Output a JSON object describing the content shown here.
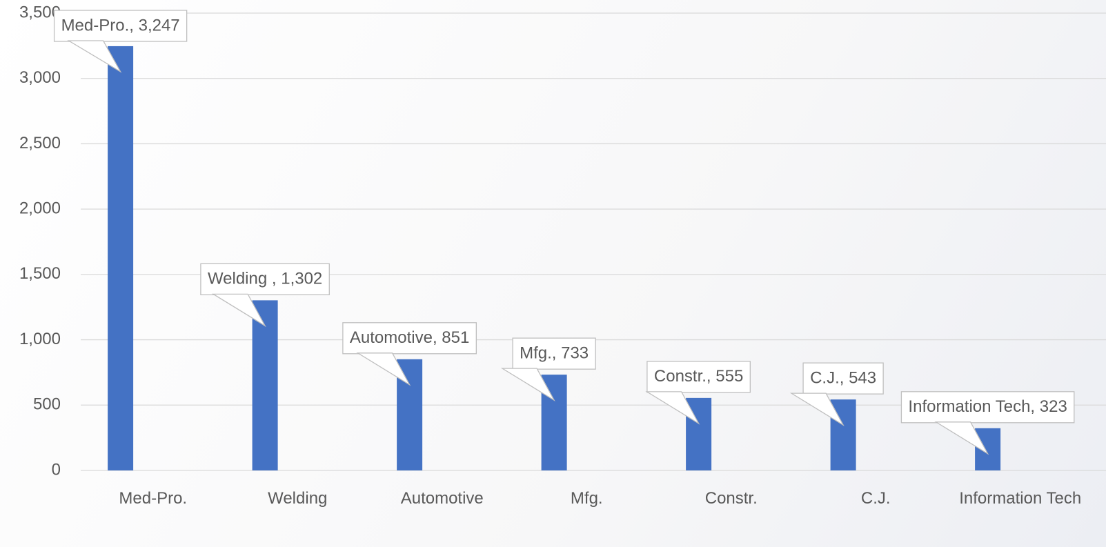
{
  "chart_data": {
    "type": "bar",
    "categories": [
      "Med-Pro.",
      "Welding",
      "Automotive",
      "Mfg.",
      "Constr.",
      "C.J.",
      "Information Tech"
    ],
    "values": [
      3247,
      1302,
      851,
      733,
      555,
      543,
      323
    ],
    "value_labels": [
      "Med-Pro., 3,247",
      "Welding , 1,302",
      "Automotive, 851",
      "Mfg., 733",
      "Constr., 555",
      "C.J., 543",
      "Information Tech, 323"
    ],
    "color": "#4472c4",
    "ylim": [
      0,
      3500
    ],
    "yticks": [
      0,
      {
        "value": 500,
        "label": "500"
      },
      {
        "value": 1000,
        "label": "1,000"
      },
      {
        "value": 1500,
        "label": "1,500"
      },
      {
        "value": 2000,
        "label": "2,000"
      },
      {
        "value": 2500,
        "label": "2,500"
      },
      {
        "value": 3000,
        "label": "3,000"
      },
      {
        "value": 3500,
        "label": "3,500"
      }
    ],
    "grid": true
  }
}
